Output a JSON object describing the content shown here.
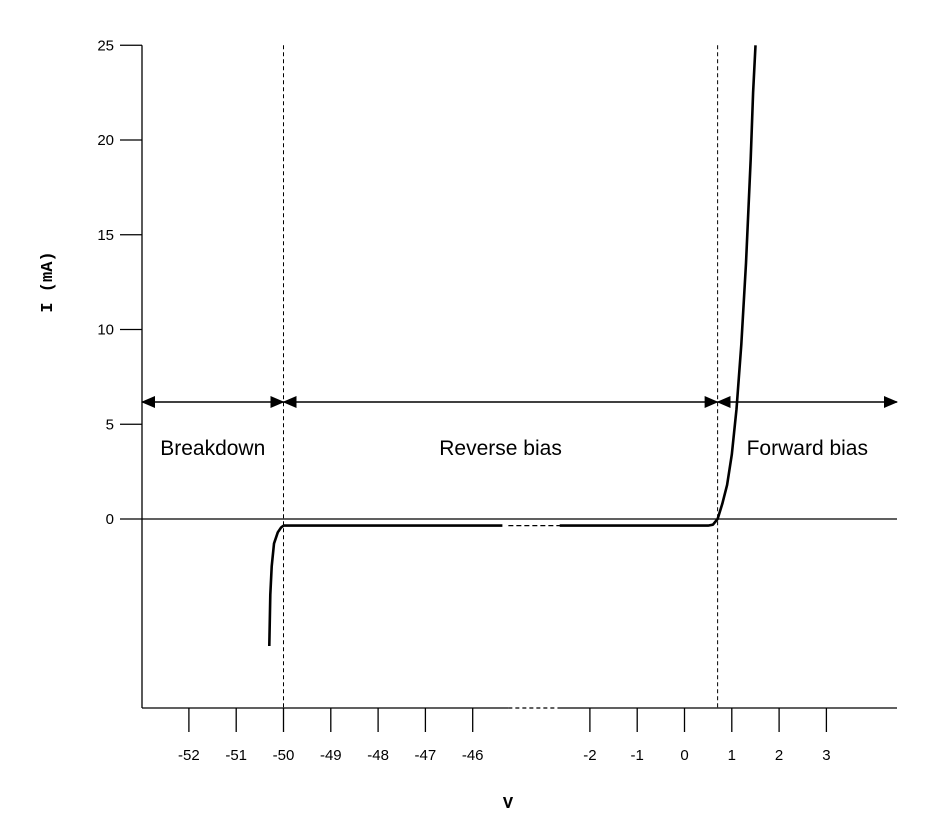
{
  "chart_data": {
    "type": "line",
    "title": "",
    "xlabel": "V",
    "ylabel": "I (mA)",
    "y_ticks": [
      0,
      5,
      10,
      15,
      20,
      25
    ],
    "ylim": [
      -10,
      25
    ],
    "x_ticks": {
      "left_segment": [
        -52,
        -51,
        -50,
        -49,
        -48,
        -47,
        -46
      ],
      "right_segment": [
        -2,
        -1,
        0,
        1,
        2,
        3
      ]
    },
    "x_axis_break": [
      -45.5,
      -2.3
    ],
    "thresholds": [
      -50,
      0.7
    ],
    "regions": [
      {
        "label": "Breakdown",
        "from_v": -53,
        "to_v": -50
      },
      {
        "label": "Reverse bias",
        "from_v": -50,
        "to_v": 0.7
      },
      {
        "label": "Forward bias",
        "from_v": 0.7,
        "to_v": 4.5
      }
    ],
    "series": [
      {
        "segment": "breakdown",
        "points": [
          [
            -50.3,
            -6.7
          ],
          [
            -50.28,
            -4
          ],
          [
            -50.25,
            -2.5
          ],
          [
            -50.2,
            -1.3
          ],
          [
            -50.12,
            -0.7
          ],
          [
            -50.05,
            -0.45
          ],
          [
            -50,
            -0.35
          ]
        ]
      },
      {
        "segment": "reverse-left",
        "points": [
          [
            -50,
            -0.35
          ],
          [
            -45.6,
            -0.35
          ]
        ]
      },
      {
        "segment": "reverse-break",
        "points": [
          [
            -45.6,
            -0.35
          ],
          [
            -2.2,
            -0.35
          ]
        ]
      },
      {
        "segment": "reverse-right-forward",
        "points": [
          [
            -2.2,
            -0.35
          ],
          [
            0.5,
            -0.35
          ],
          [
            0.6,
            -0.3
          ],
          [
            0.7,
            0
          ],
          [
            0.8,
            0.8
          ],
          [
            0.9,
            1.8
          ],
          [
            1.0,
            3.4
          ],
          [
            1.1,
            5.8
          ],
          [
            1.2,
            9.2
          ],
          [
            1.3,
            13.5
          ],
          [
            1.4,
            19.0
          ],
          [
            1.45,
            22.5
          ],
          [
            1.5,
            25
          ]
        ]
      }
    ]
  }
}
